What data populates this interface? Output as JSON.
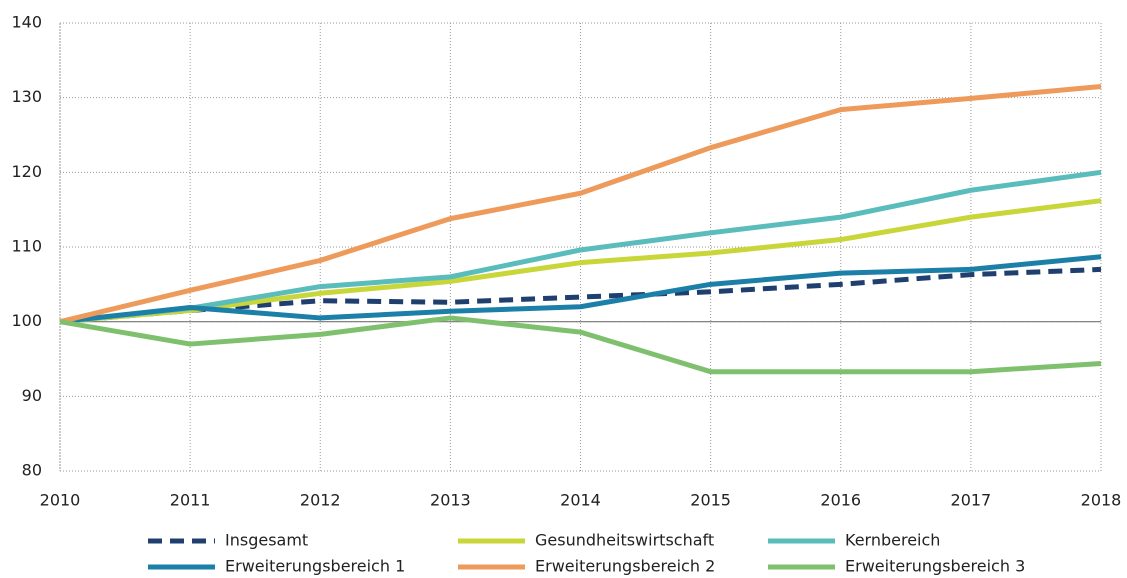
{
  "chart_data": {
    "type": "line",
    "x": [
      2010,
      2011,
      2012,
      2013,
      2014,
      2015,
      2016,
      2017,
      2018
    ],
    "xlim": [
      2010,
      2018
    ],
    "xticks": [
      2010,
      2011,
      2012,
      2013,
      2014,
      2015,
      2016,
      2017,
      2018
    ],
    "ylim": [
      80,
      140
    ],
    "yticks": [
      80,
      90,
      100,
      110,
      120,
      130,
      140
    ],
    "grid": true,
    "legend": "bottom",
    "series": [
      {
        "name": "Insgesamt",
        "color": "#1f3f6e",
        "dashed": true,
        "values": [
          100,
          101.5,
          102.8,
          102.6,
          103.3,
          104,
          105,
          106.3,
          107
        ]
      },
      {
        "name": "Gesundheitswirtschaft",
        "color": "#c8d63a",
        "values": [
          100,
          101.5,
          103.8,
          105.4,
          107.9,
          109.2,
          111,
          114,
          116.2
        ]
      },
      {
        "name": "Kernbereich",
        "color": "#5bbcbc",
        "values": [
          100,
          101.8,
          104.7,
          106,
          109.6,
          111.9,
          114,
          117.6,
          120
        ]
      },
      {
        "name": "Erweiterungsbereich 1",
        "color": "#1b7fa8",
        "values": [
          100,
          101.9,
          100.5,
          101.4,
          102,
          105,
          106.5,
          107,
          108.7
        ]
      },
      {
        "name": "Erweiterungsbereich 2",
        "color": "#ee9a5a",
        "values": [
          100,
          104.2,
          108.2,
          113.8,
          117.2,
          123.3,
          128.4,
          129.9,
          131.5
        ]
      },
      {
        "name": "Erweiterungsbereich 3",
        "color": "#7fc06e",
        "values": [
          100,
          97,
          98.3,
          100.5,
          98.6,
          93.3,
          93.3,
          93.3,
          94.4
        ]
      }
    ]
  }
}
